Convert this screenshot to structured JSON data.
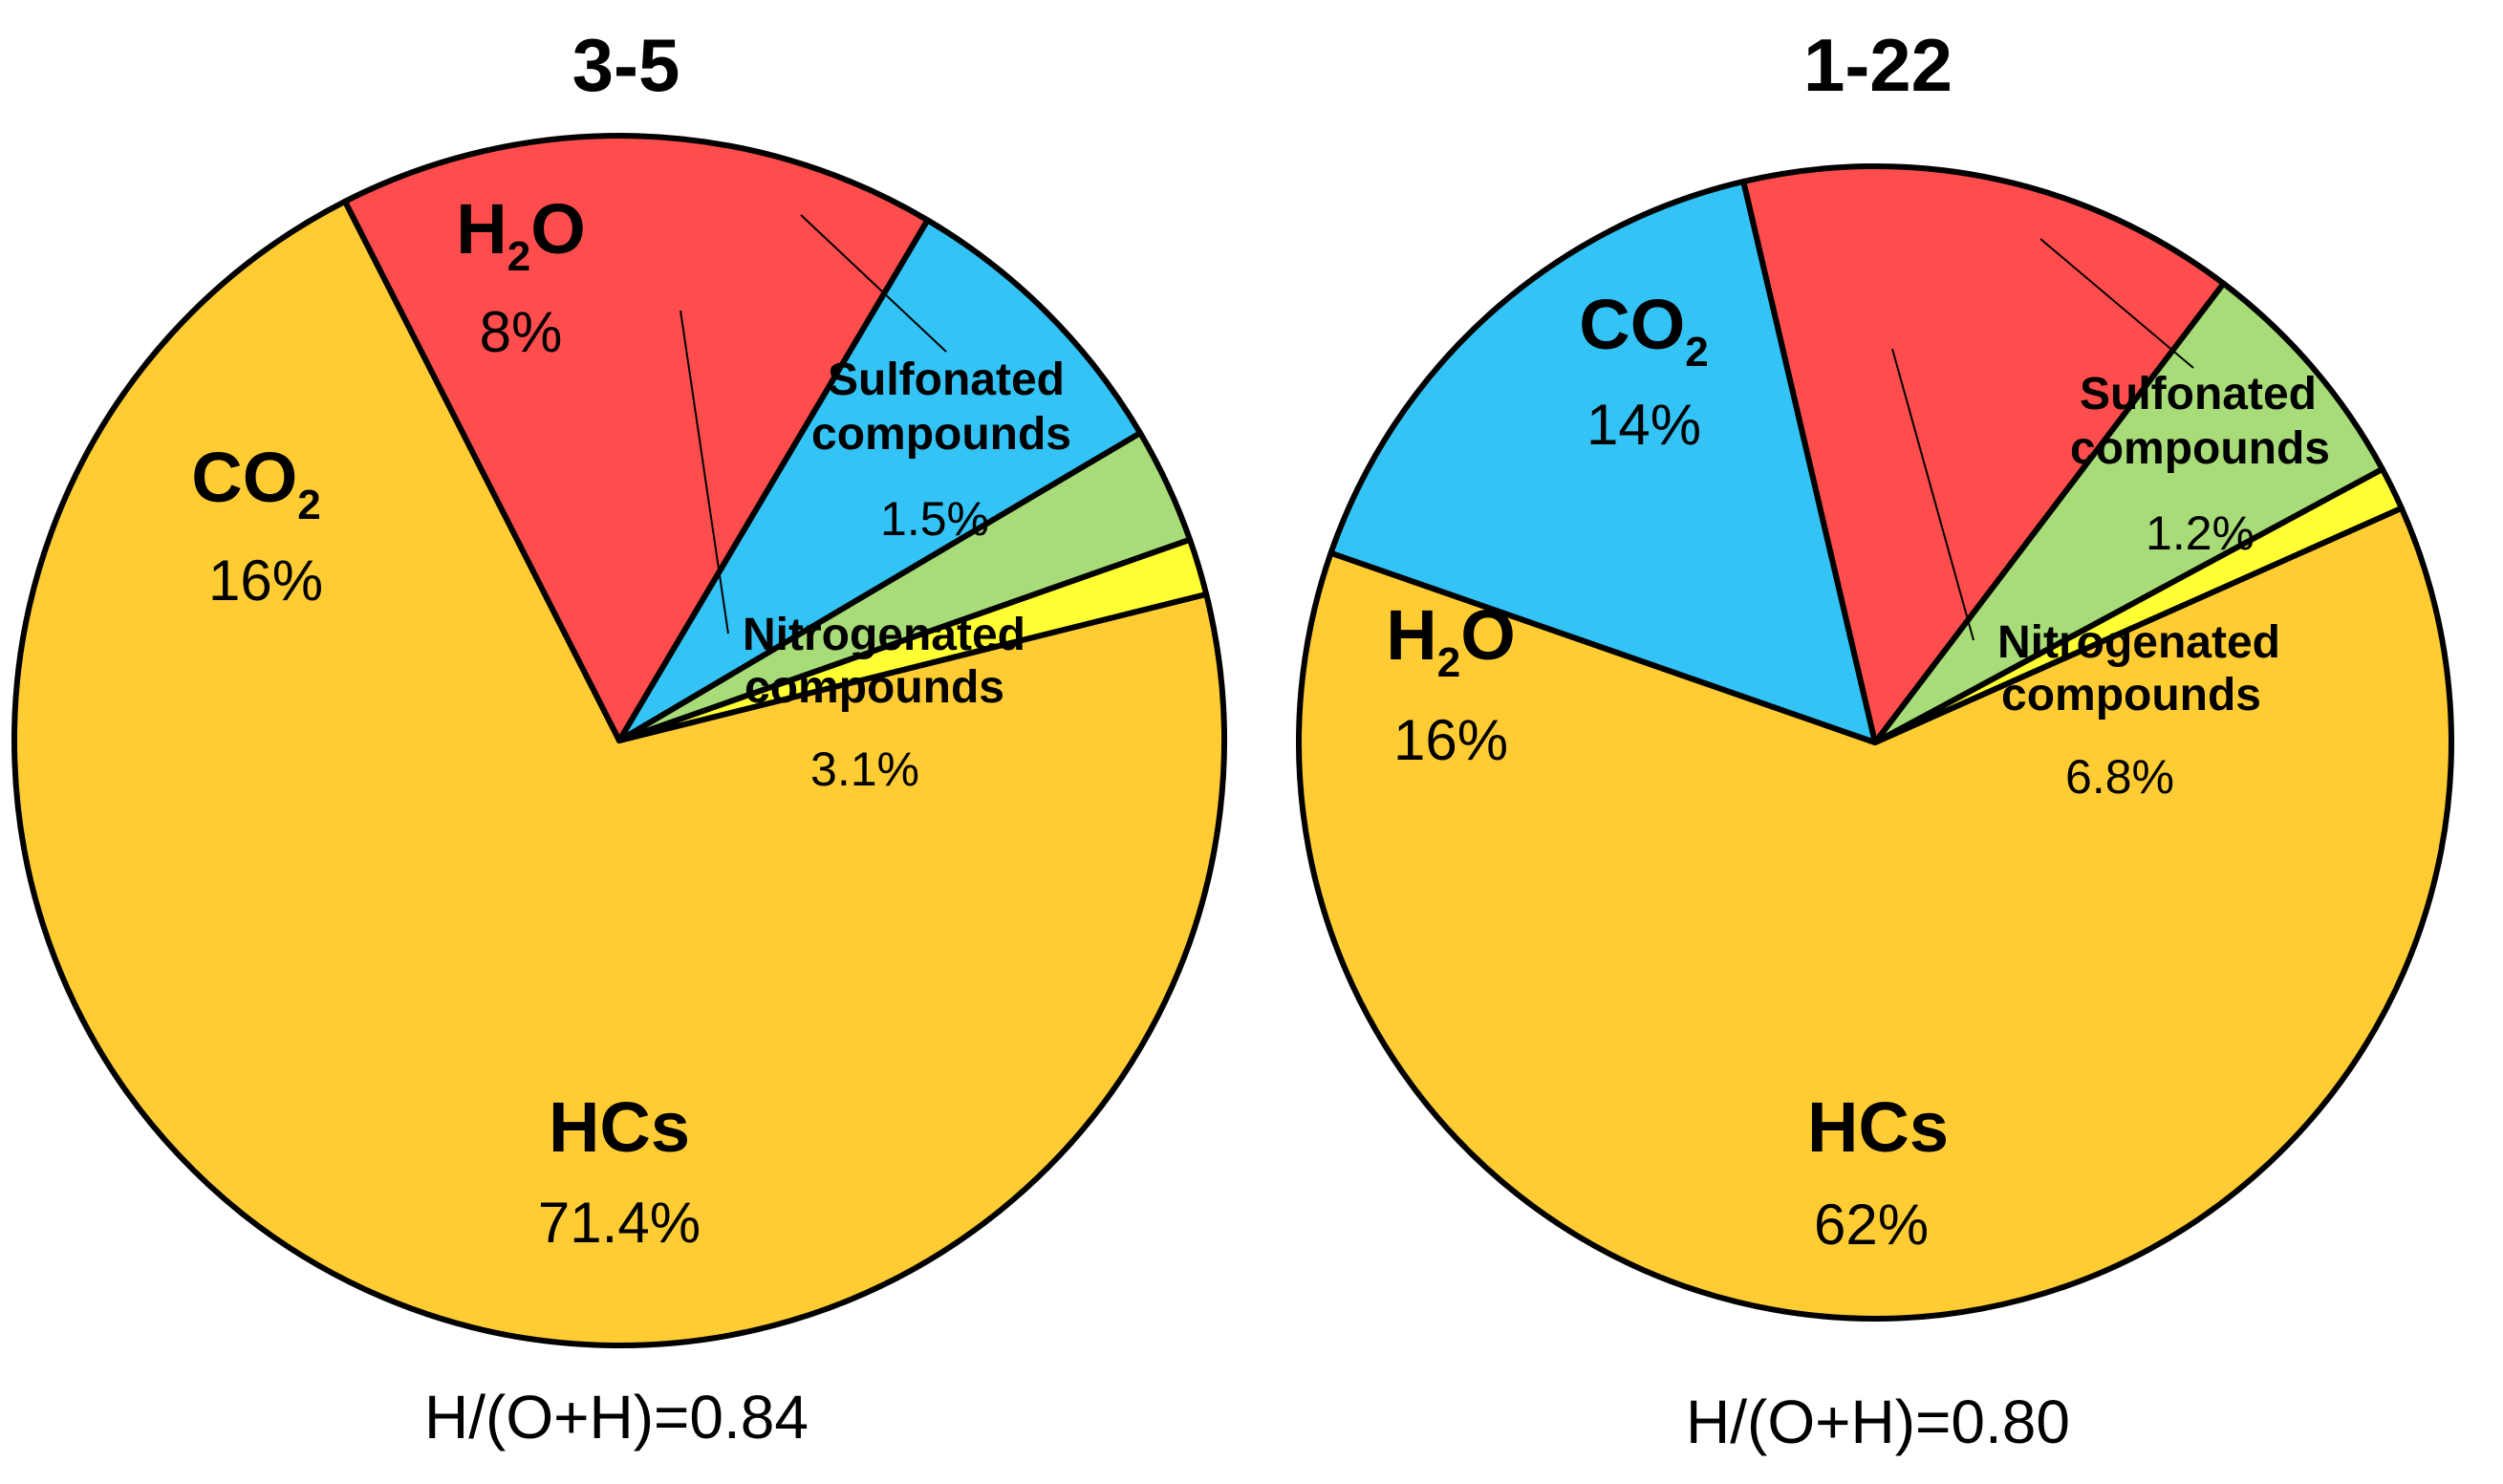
{
  "chart_data": [
    {
      "type": "pie",
      "title": "3-5",
      "note": "H/(O+H)=0.84",
      "slices": [
        {
          "label": "HCs",
          "value": 71.4,
          "pct_label": "71.4%",
          "color": "#FFCC33"
        },
        {
          "label": "CO",
          "sub": "2",
          "value": 16,
          "pct_label": "16%",
          "color": "#FF4D4D"
        },
        {
          "label": "H",
          "sub": "2",
          "label_suffix": "O",
          "value": 8,
          "pct_label": "8%",
          "color": "#33C3F5"
        },
        {
          "label": "Nitrogenated compounds",
          "label_lines": [
            "Nitrogenated",
            "compounds"
          ],
          "value": 3.1,
          "pct_label": "3.1%",
          "color": "#A8DC78"
        },
        {
          "label": "Sulfonated compounds",
          "label_lines": [
            "Sulfonated",
            "compounds"
          ],
          "value": 1.5,
          "pct_label": "1.5%",
          "color": "#FFFF33"
        }
      ]
    },
    {
      "type": "pie",
      "title": "1-22",
      "note": "H/(O+H)=0.80",
      "slices": [
        {
          "label": "HCs",
          "value": 62,
          "pct_label": "62%",
          "color": "#FFCC33"
        },
        {
          "label": "H",
          "sub": "2",
          "label_suffix": "O",
          "value": 16,
          "pct_label": "16%",
          "color": "#33C3F5"
        },
        {
          "label": "CO",
          "sub": "2",
          "value": 14,
          "pct_label": "14%",
          "color": "#FF4D4D"
        },
        {
          "label": "Nitrogenated compounds",
          "label_lines": [
            "Nitrogenated",
            "compounds"
          ],
          "value": 6.8,
          "pct_label": "6.8%",
          "color": "#A8DC78"
        },
        {
          "label": "Sulfonated compounds",
          "label_lines": [
            "Sulfonated",
            "compounds"
          ],
          "value": 1.2,
          "pct_label": "1.2%",
          "color": "#FFFF33"
        }
      ]
    }
  ]
}
